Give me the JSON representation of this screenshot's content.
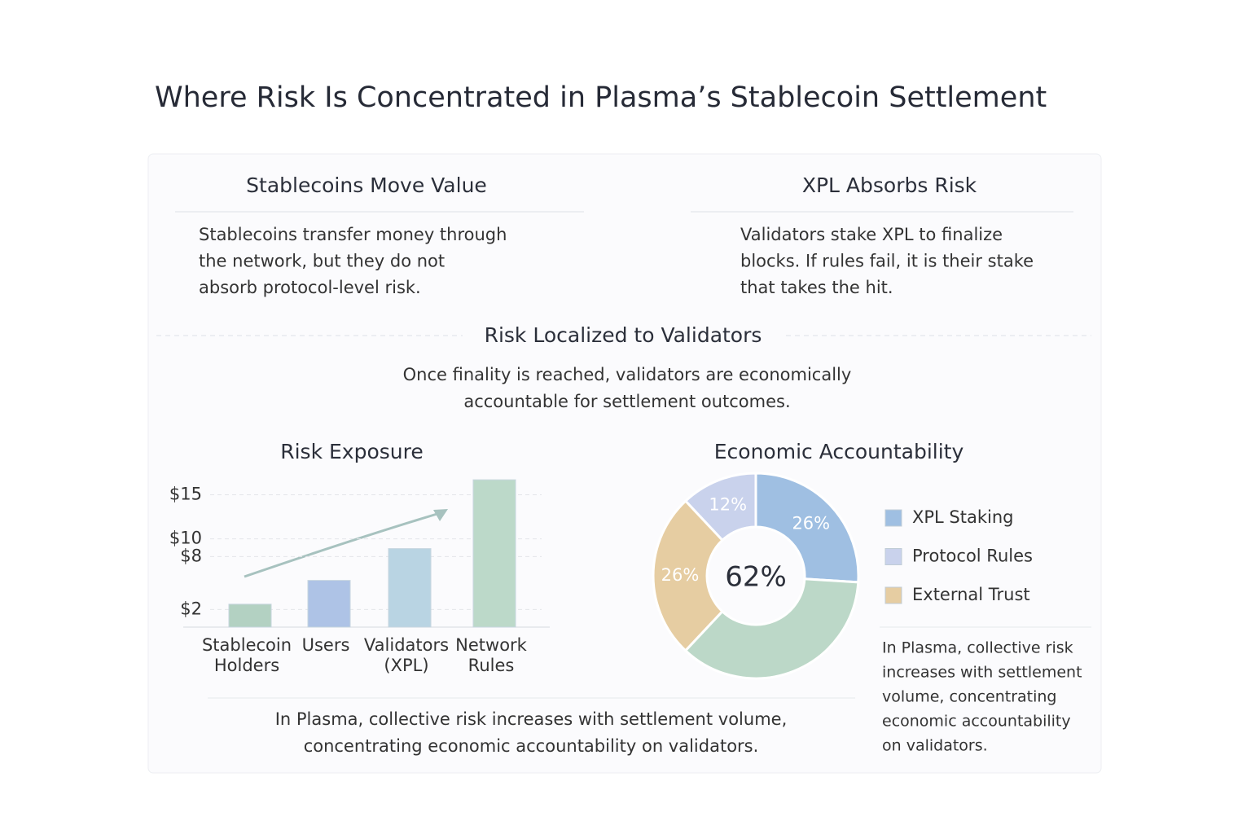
{
  "title": "Where Risk Is Concentrated in Plasma’s Stablecoin Settlement",
  "cards": [
    {
      "title": "Stablecoins Move Value",
      "lines": [
        "Stablecoins transfer money through",
        "the network, but they do not",
        "absorb protocol-level risk."
      ]
    },
    {
      "title": "XPL Absorbs Risk",
      "lines": [
        "Validators stake XPL to finalize",
        "blocks. If rules fail, it is their stake",
        "that takes the hit."
      ]
    }
  ],
  "section": {
    "title": "Risk Localized to Validators",
    "lines": [
      "Once finality is reached, validators are economically",
      "accountable for settlement outcomes."
    ]
  },
  "chart_data": [
    {
      "type": "bar",
      "title": "Risk Exposure",
      "categories": [
        [
          "Stablecoin",
          "Holders"
        ],
        [
          "Users"
        ],
        [
          "Validators",
          "(XPL)"
        ],
        [
          "Network",
          "Rules"
        ]
      ],
      "values": [
        2.6,
        5.3,
        8.9,
        16.7
      ],
      "colors": [
        "#b3d1c2",
        "#aec3e6",
        "#b9d4e3",
        "#bcd9c9"
      ],
      "ylim": [
        0,
        18
      ],
      "yticks": [
        {
          "value": 2,
          "label": "$2"
        },
        {
          "value": 8,
          "label": "$8"
        },
        {
          "value": 10,
          "label": "$10"
        },
        {
          "value": 15,
          "label": "$15"
        }
      ],
      "grid": true
    },
    {
      "type": "pie",
      "title": "Economic Accountability",
      "categories": [
        "XPL Staking",
        "Protocol Rules",
        "External Trust",
        null
      ],
      "values": [
        26,
        12,
        26,
        36
      ],
      "value_labels": [
        "26%",
        "12%",
        "26%",
        null
      ],
      "colors": [
        "#9fbfe2",
        "#c9d2ec",
        "#e6cda2",
        "#bcd8c8"
      ],
      "center_label": "62%",
      "legend": "right"
    }
  ],
  "caption": {
    "lines": [
      "In Plasma, collective risk increases with settlement volume,",
      "concentrating economic accountability on validators."
    ]
  },
  "side_note": {
    "lines": [
      "In Plasma, collective risk",
      "increases with settlement",
      "volume, concentrating",
      "economic accountability",
      "on validators."
    ]
  }
}
